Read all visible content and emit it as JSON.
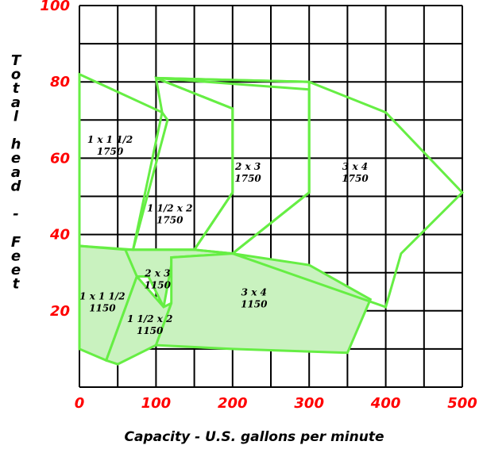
{
  "chart_data": {
    "type": "area",
    "xlabel": "Capacity - U.S. gallons per minute",
    "ylabel": "Total head - Feet",
    "xlim": [
      0,
      500
    ],
    "ylim": [
      0,
      100
    ],
    "x_ticks": [
      0,
      100,
      200,
      300,
      400,
      500
    ],
    "y_ticks": [
      20,
      40,
      60,
      80,
      100
    ],
    "grid": {
      "x_step": 50,
      "y_step": 10
    },
    "colors": {
      "grid": "#000000",
      "tick_labels": "#ff0000",
      "curve_stroke": "#66ee44",
      "region_fill_1150": "#c9f2bf"
    },
    "series": [
      {
        "name": "1 x 1 1/2",
        "rpm": "1750",
        "points": [
          [
            0,
            82
          ],
          [
            108,
            72
          ],
          [
            115,
            70
          ],
          [
            70,
            36
          ],
          [
            0,
            37
          ]
        ],
        "label_at": [
          40,
          64
        ]
      },
      {
        "name": "1 1/2 x 2",
        "rpm": "1750",
        "points": [
          [
            100,
            81
          ],
          [
            200,
            73
          ],
          [
            200,
            71
          ],
          [
            200,
            51
          ],
          [
            150,
            36
          ],
          [
            70,
            36
          ],
          [
            108,
            72
          ]
        ],
        "label_at": [
          118,
          46
        ]
      },
      {
        "name": "2 x 3",
        "rpm": "1750",
        "points": [
          [
            100,
            81
          ],
          [
            300,
            80
          ],
          [
            300,
            78
          ],
          [
            300,
            51
          ],
          [
            200,
            35
          ],
          [
            150,
            36
          ],
          [
            200,
            51
          ],
          [
            200,
            73
          ]
        ],
        "label_at": [
          220,
          57
        ]
      },
      {
        "name": "3 x 4",
        "rpm": "1750",
        "points": [
          [
            100,
            81
          ],
          [
            300,
            80
          ],
          [
            400,
            72
          ],
          [
            500,
            51
          ],
          [
            420,
            35
          ],
          [
            400,
            21
          ],
          [
            200,
            35
          ],
          [
            300,
            51
          ],
          [
            300,
            78
          ]
        ],
        "label_at": [
          360,
          57
        ]
      },
      {
        "name": "1 x 1 1/2",
        "rpm": "1150",
        "points": [
          [
            0,
            37
          ],
          [
            60,
            36
          ],
          [
            90,
            35
          ],
          [
            75,
            29
          ],
          [
            35,
            7
          ],
          [
            0,
            10
          ]
        ],
        "label_at": [
          30,
          23
        ]
      },
      {
        "name": "2 x 3",
        "rpm": "1150",
        "points": [
          [
            60,
            36
          ],
          [
            150,
            36
          ],
          [
            200,
            35
          ],
          [
            120,
            34
          ],
          [
            120,
            32
          ],
          [
            110,
            21
          ],
          [
            90,
            29
          ],
          [
            75,
            29
          ]
        ],
        "label_at": [
          102,
          29
        ]
      },
      {
        "name": "1 1/2 x 2",
        "rpm": "1150",
        "points": [
          [
            75,
            29
          ],
          [
            110,
            21
          ],
          [
            120,
            22
          ],
          [
            100,
            11
          ],
          [
            50,
            6
          ],
          [
            35,
            7
          ]
        ],
        "label_at": [
          92,
          17
        ]
      },
      {
        "name": "3 x 4",
        "rpm": "1150",
        "points": [
          [
            200,
            35
          ],
          [
            300,
            32
          ],
          [
            380,
            23
          ],
          [
            350,
            9
          ],
          [
            200,
            10
          ],
          [
            100,
            11
          ],
          [
            120,
            22
          ],
          [
            120,
            32
          ],
          [
            120,
            34
          ]
        ],
        "label_at": [
          228,
          24
        ]
      }
    ]
  }
}
